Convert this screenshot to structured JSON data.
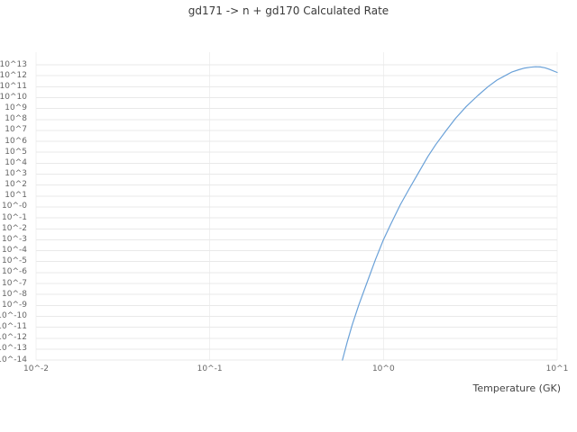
{
  "chart": {
    "title": "gd171 -> n + gd170 Calculated Rate",
    "xlabel": "Temperature (GK)"
  },
  "chart_data": {
    "type": "line",
    "title": "gd171 -> n + gd170 Calculated Rate",
    "xlabel": "Temperature (GK)",
    "ylabel": "",
    "x_scale": "log",
    "y_scale": "log",
    "grid": true,
    "legend": "none",
    "x_range_log10": [
      -2,
      1
    ],
    "y_range_log10": [
      -14,
      13
    ],
    "x_ticks": [
      {
        "log10": -2,
        "label": "10^-2"
      },
      {
        "log10": -1,
        "label": "10^-1"
      },
      {
        "log10": 0,
        "label": "10^0"
      },
      {
        "log10": 1,
        "label": "10^1"
      }
    ],
    "y_ticks": [
      "10^13",
      "10^12",
      "10^11",
      "10^10",
      "10^9",
      "10^8",
      "10^7",
      "10^6",
      "10^5",
      "10^4",
      "10^3",
      "10^2",
      "10^1",
      "10^-0",
      "10^-1",
      "10^-2",
      "10^-3",
      "10^-4",
      "10^-5",
      "10^-6",
      "10^-7",
      "10^-8",
      "10^-9",
      "10^-10",
      "10^-11",
      "10^-12",
      "10^-13",
      "10^-14"
    ],
    "line_color": "#6aa1d8",
    "grid_color": "#e9e9e9",
    "series": [
      {
        "name": "Calculated Rate",
        "T_GK": [
          0.58,
          0.62,
          0.66,
          0.72,
          0.8,
          0.9,
          1.0,
          1.1,
          1.25,
          1.4,
          1.6,
          1.8,
          2.0,
          2.3,
          2.6,
          3.0,
          3.5,
          4.0,
          4.5,
          5.0,
          5.5,
          6.0,
          6.5,
          7.0,
          7.5,
          8.0,
          8.5,
          9.0,
          10.0
        ],
        "log10_rate": [
          -14.0,
          -12.3,
          -10.8,
          -9.0,
          -7.0,
          -4.8,
          -3.0,
          -1.6,
          0.2,
          1.6,
          3.2,
          4.6,
          5.7,
          7.0,
          8.1,
          9.2,
          10.2,
          11.0,
          11.6,
          12.0,
          12.35,
          12.55,
          12.7,
          12.78,
          12.82,
          12.8,
          12.73,
          12.6,
          12.3
        ]
      }
    ]
  }
}
